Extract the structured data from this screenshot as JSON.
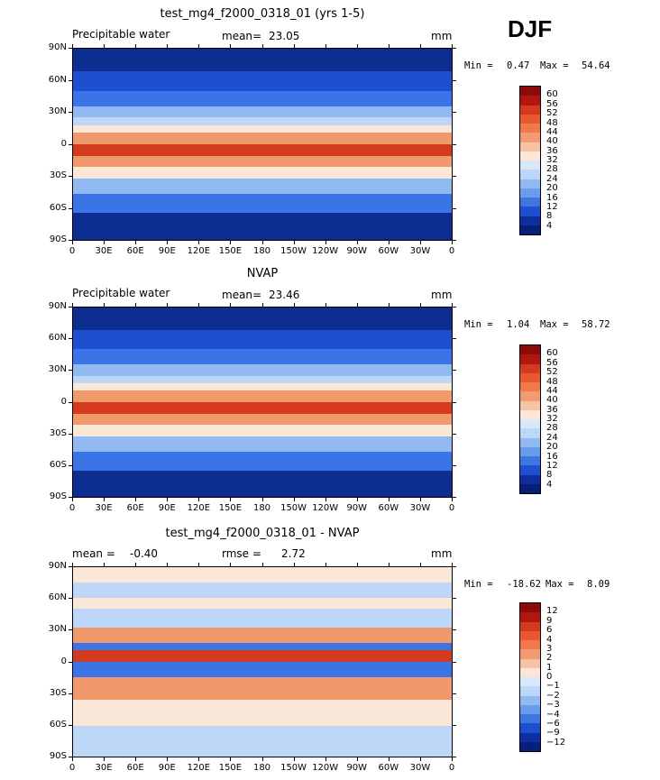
{
  "season": "DJF",
  "lat_ticks": [
    "90N",
    "60N",
    "30N",
    "0",
    "30S",
    "60S",
    "90S"
  ],
  "lon_ticks": [
    "0",
    "30E",
    "60E",
    "90E",
    "120E",
    "150E",
    "180",
    "150W",
    "120W",
    "90W",
    "60W",
    "30W",
    "0"
  ],
  "colors": {
    "ocean_low": "#0d2d91",
    "mid_blue": "#3a74e6",
    "light_blue": "#bcd7f7",
    "neutral": "#fbe7d8",
    "orange": "#f09a6c",
    "red": "#d43a1d",
    "dark_red": "#8b0000"
  },
  "panels": [
    {
      "title": "test_mg4_f2000_0318_01 (yrs 1-5)",
      "left_label": "Precipitable water",
      "stat_label": "mean=",
      "stat_value": "23.05",
      "extra_label": "",
      "extra_value": "",
      "units": "mm",
      "min_label": "Min =",
      "min_value": "0.47",
      "max_label": "Max =",
      "max_value": "54.64"
    },
    {
      "title": "NVAP",
      "left_label": "Precipitable water",
      "stat_label": "mean=",
      "stat_value": "23.46",
      "extra_label": "",
      "extra_value": "",
      "units": "mm",
      "min_label": "Min =",
      "min_value": "1.04",
      "max_label": "Max =",
      "max_value": "58.72"
    },
    {
      "title": "test_mg4_f2000_0318_01 - NVAP",
      "left_label": "mean =",
      "stat_label": "",
      "stat_value": "-0.40",
      "extra_label": "rmse =",
      "extra_value": "2.72",
      "units": "mm",
      "min_label": "Min =",
      "min_value": "-18.62",
      "max_label": "Max =",
      "max_value": "8.09"
    }
  ],
  "chart_data": [
    {
      "type": "heatmap",
      "title": "test_mg4_f2000_0318_01 (yrs 1-5)",
      "field": "Precipitable water",
      "units": "mm",
      "mean": 23.05,
      "min": 0.47,
      "max": 54.64,
      "colorbar_levels": [
        60,
        56,
        52,
        48,
        44,
        40,
        36,
        32,
        28,
        24,
        20,
        16,
        12,
        8,
        4
      ],
      "colorbar_colors": [
        "#8b0a0a",
        "#b3160f",
        "#d43a1d",
        "#e8582f",
        "#f0784a",
        "#f49a72",
        "#f8c3a4",
        "#fde6d6",
        "#d9e7fa",
        "#bcd7f7",
        "#92baf2",
        "#6b9cec",
        "#3f77e2",
        "#1d4fd0",
        "#0f2e9f",
        "#071f78"
      ],
      "lat_range": [
        -90,
        90
      ],
      "lon_range": [
        0,
        360
      ]
    },
    {
      "type": "heatmap",
      "title": "NVAP",
      "field": "Precipitable water",
      "units": "mm",
      "mean": 23.46,
      "min": 1.04,
      "max": 58.72,
      "colorbar_levels": [
        60,
        56,
        52,
        48,
        44,
        40,
        36,
        32,
        28,
        24,
        20,
        16,
        12,
        8,
        4
      ],
      "colorbar_colors": [
        "#8b0a0a",
        "#b3160f",
        "#d43a1d",
        "#e8582f",
        "#f0784a",
        "#f49a72",
        "#f8c3a4",
        "#fde6d6",
        "#d9e7fa",
        "#bcd7f7",
        "#92baf2",
        "#6b9cec",
        "#3f77e2",
        "#1d4fd0",
        "#0f2e9f",
        "#071f78"
      ],
      "lat_range": [
        -90,
        90
      ],
      "lon_range": [
        0,
        360
      ]
    },
    {
      "type": "heatmap",
      "title": "test_mg4_f2000_0318_01 - NVAP",
      "units": "mm",
      "mean": -0.4,
      "rmse": 2.72,
      "min": -18.62,
      "max": 8.09,
      "colorbar_levels": [
        "12",
        "9",
        "6",
        "4",
        "3",
        "2",
        "1",
        "0",
        "−1",
        "−2",
        "−3",
        "−4",
        "−6",
        "−9",
        "−12"
      ],
      "colorbar_colors": [
        "#8b0a0a",
        "#b3160f",
        "#d43a1d",
        "#e8582f",
        "#f0784a",
        "#f49a72",
        "#f8c3a4",
        "#fde6d6",
        "#d9e7fa",
        "#bcd7f7",
        "#92baf2",
        "#6b9cec",
        "#3f77e2",
        "#1d4fd0",
        "#0f2e9f",
        "#071f78"
      ],
      "lat_range": [
        -90,
        90
      ],
      "lon_range": [
        0,
        360
      ]
    }
  ]
}
